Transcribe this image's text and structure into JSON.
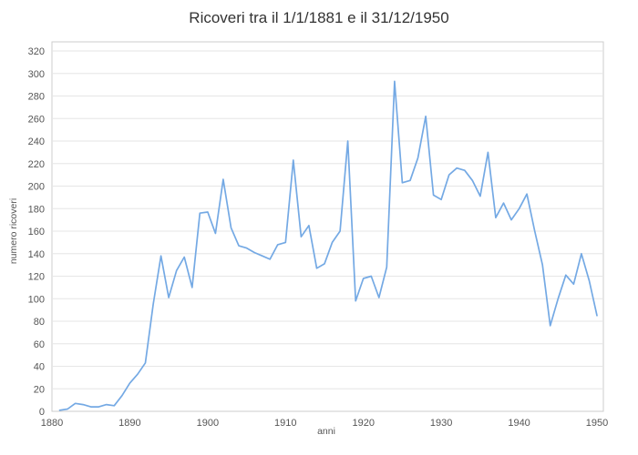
{
  "chart_data": {
    "type": "line",
    "title": "Ricoveri tra il 1/1/1881 e il 31/12/1950",
    "xlabel": "anni",
    "ylabel": "numero ricoveri",
    "xlim": [
      1880,
      1950
    ],
    "ylim": [
      0,
      320
    ],
    "ytick_step": 20,
    "xticks": [
      1880,
      1890,
      1900,
      1910,
      1920,
      1930,
      1940,
      1950
    ],
    "grid": "horizontal-only",
    "legend": "none",
    "line_color": "#74a9e4",
    "grid_color": "#e6e6e6",
    "border_color": "#cccccc",
    "x": [
      1881,
      1882,
      1883,
      1884,
      1885,
      1886,
      1887,
      1888,
      1889,
      1890,
      1891,
      1892,
      1893,
      1894,
      1895,
      1896,
      1897,
      1898,
      1899,
      1900,
      1901,
      1902,
      1903,
      1904,
      1905,
      1906,
      1907,
      1908,
      1909,
      1910,
      1911,
      1912,
      1913,
      1914,
      1915,
      1916,
      1917,
      1918,
      1919,
      1920,
      1921,
      1922,
      1923,
      1924,
      1925,
      1926,
      1927,
      1928,
      1929,
      1930,
      1931,
      1932,
      1933,
      1934,
      1935,
      1936,
      1937,
      1938,
      1939,
      1940,
      1941,
      1942,
      1943,
      1944,
      1945,
      1946,
      1947,
      1948,
      1949,
      1950
    ],
    "values": [
      1,
      2,
      7,
      6,
      4,
      4,
      6,
      5,
      14,
      25,
      33,
      43,
      95,
      138,
      101,
      125,
      137,
      110,
      176,
      177,
      158,
      206,
      163,
      147,
      145,
      141,
      138,
      135,
      148,
      150,
      223,
      155,
      165,
      127,
      131,
      150,
      160,
      240,
      98,
      118,
      120,
      101,
      128,
      293,
      203,
      205,
      225,
      262,
      192,
      188,
      210,
      216,
      214,
      205,
      191,
      230,
      172,
      185,
      170,
      180,
      193,
      160,
      130,
      76,
      100,
      121,
      113,
      140,
      116,
      85
    ]
  }
}
